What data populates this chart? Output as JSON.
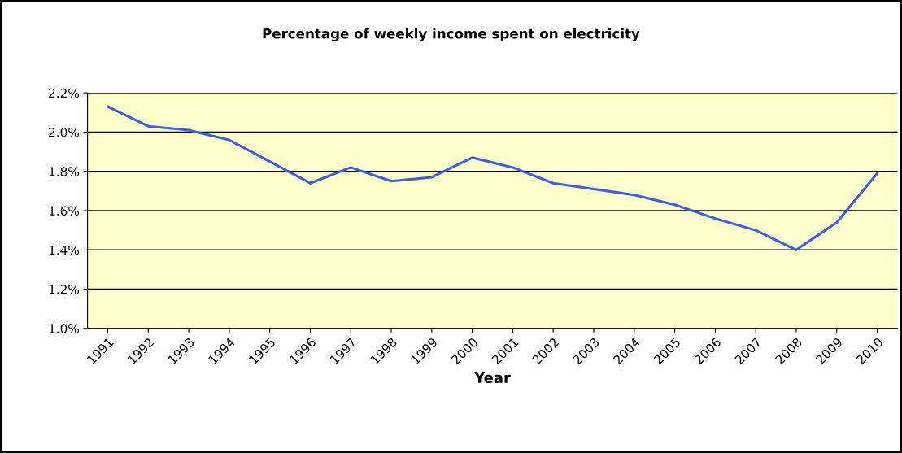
{
  "chart_data": {
    "type": "line",
    "title": "Percentage of weekly income spent on electricity",
    "xlabel": "Year",
    "categories": [
      "1991",
      "1992",
      "1993",
      "1994",
      "1995",
      "1996",
      "1997",
      "1998",
      "1999",
      "2000",
      "2001",
      "2002",
      "2003",
      "2004",
      "2005",
      "2006",
      "2007",
      "2008",
      "2009",
      "2010"
    ],
    "series": [
      {
        "color": "#3a5fdc",
        "values": [
          2.13,
          2.03,
          2.01,
          1.96,
          1.85,
          1.74,
          1.82,
          1.75,
          1.77,
          1.87,
          1.82,
          1.74,
          1.71,
          1.68,
          1.63,
          1.56,
          1.5,
          1.4,
          1.54,
          1.79
        ]
      }
    ],
    "ylim": [
      1.0,
      2.2
    ],
    "yticks": [
      {
        "value": 1.0,
        "label": "1.0%"
      },
      {
        "value": 1.2,
        "label": "1.2%"
      },
      {
        "value": 1.4,
        "label": "1.4%"
      },
      {
        "value": 1.6,
        "label": "1.6%"
      },
      {
        "value": 1.8,
        "label": "1.8%"
      },
      {
        "value": 2.0,
        "label": "2.0%"
      },
      {
        "value": 2.2,
        "label": "2.2%"
      }
    ],
    "grid": "y",
    "legend": false,
    "marker": "none",
    "line_style": "solid"
  }
}
